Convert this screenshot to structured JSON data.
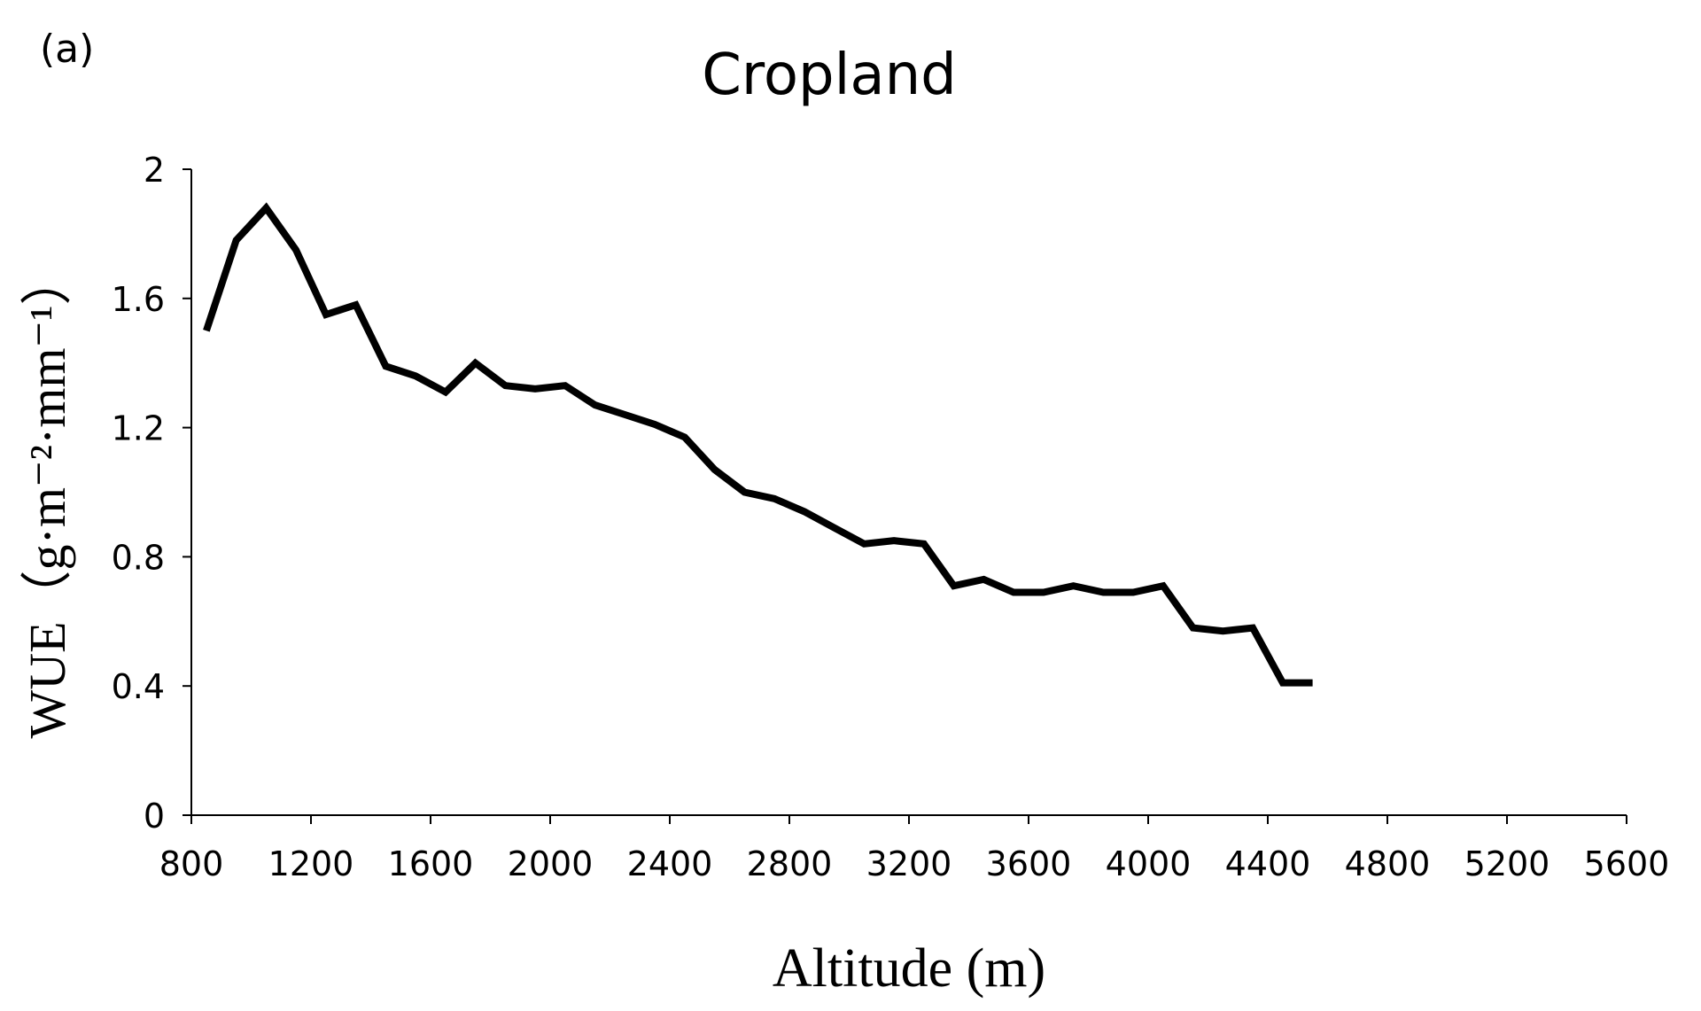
{
  "panel_label": "(a)",
  "chart_data": {
    "type": "line",
    "title": "Cropland",
    "xlabel": "Altitude (m)",
    "ylabel": "WUE（g·m⁻²·mm⁻¹）",
    "xlim": [
      800,
      5600
    ],
    "ylim": [
      0,
      2
    ],
    "x_ticks": [
      800,
      1200,
      1600,
      2000,
      2400,
      2800,
      3200,
      3600,
      4000,
      4400,
      4800,
      5200,
      5600
    ],
    "y_ticks": [
      0,
      0.4,
      0.8,
      1.2,
      1.6,
      2
    ],
    "y_tick_labels": [
      "0",
      "0.4",
      "0.8",
      "1.2",
      "1.6",
      "2"
    ],
    "grid": false,
    "line_color": "#000000",
    "series": [
      {
        "x": [
          850,
          950,
          1050,
          1150,
          1250,
          1350,
          1450,
          1550,
          1650,
          1750,
          1850,
          1950,
          2050,
          2150,
          2250,
          2350,
          2450,
          2550,
          2650,
          2750,
          2850,
          2950,
          3050,
          3150,
          3250,
          3350,
          3450,
          3550,
          3650,
          3750,
          3850,
          3950,
          4050,
          4150,
          4250,
          4350,
          4450,
          4550
        ],
        "y": [
          1.5,
          1.78,
          1.88,
          1.75,
          1.55,
          1.58,
          1.39,
          1.36,
          1.31,
          1.4,
          1.33,
          1.32,
          1.33,
          1.27,
          1.24,
          1.21,
          1.17,
          1.07,
          1.0,
          0.98,
          0.94,
          0.89,
          0.84,
          0.85,
          0.84,
          0.71,
          0.73,
          0.69,
          0.69,
          0.71,
          0.69,
          0.69,
          0.71,
          0.58,
          0.57,
          0.58,
          0.41,
          0.41
        ]
      }
    ]
  }
}
